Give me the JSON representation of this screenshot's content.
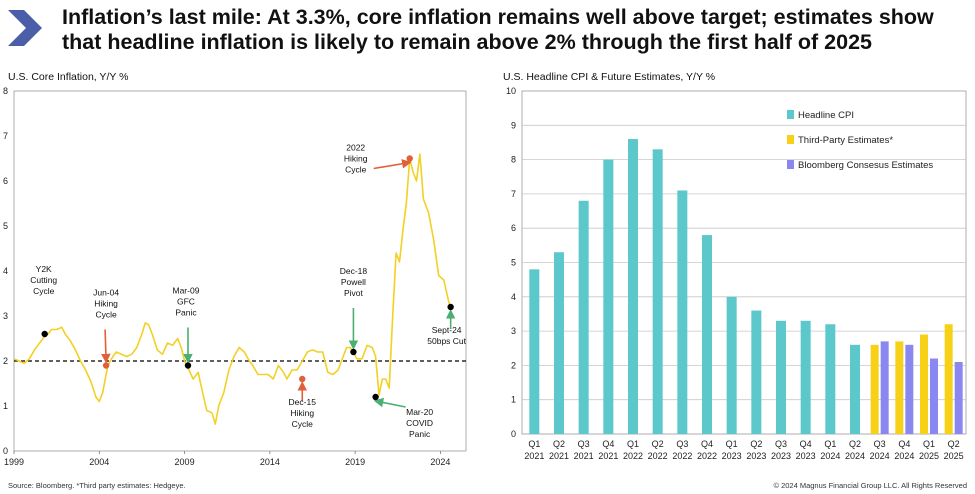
{
  "header": {
    "title_line1": "Inflation’s last mile: At 3.3%, core inflation remains well above target; estimates show",
    "title_line2": "that headline inflation is likely to remain above 2% through the first half of 2025"
  },
  "colors": {
    "chevron": "#4a5fa8",
    "core_line": "#f2d024",
    "headline_bar": "#5cc8cc",
    "third_party_bar": "#f7d117",
    "bloomberg_bar": "#8a88f0",
    "arrow_red": "#e0603a",
    "arrow_green": "#4caf72"
  },
  "footer": {
    "source": "Source: Bloomberg. *Third party estimates: Hedgeye.",
    "copyright": "© 2024 Magnus Financial Group LLC. All Rights Reserved"
  },
  "chart_data": [
    {
      "type": "line",
      "title": "U.S. Core Inflation, Y/Y %",
      "x_range": [
        1999,
        2025.5
      ],
      "ylim": [
        0,
        8
      ],
      "y_ticks": [
        "0",
        "1",
        "2",
        "3",
        "4",
        "5",
        "6",
        "7",
        "8"
      ],
      "x_ticks": [
        {
          "year": 1999,
          "label": "1999"
        },
        {
          "year": 2004,
          "label": "2004"
        },
        {
          "year": 2009,
          "label": "2009"
        },
        {
          "year": 2014,
          "label": "2014"
        },
        {
          "year": 2019,
          "label": "2019"
        },
        {
          "year": 2024,
          "label": "2024"
        }
      ],
      "target": 2,
      "series": [
        {
          "name": "Core Inflation",
          "points": [
            [
              1999.0,
              2.05
            ],
            [
              1999.3,
              2.0
            ],
            [
              1999.6,
              1.95
            ],
            [
              1999.9,
              2.05
            ],
            [
              2000.2,
              2.25
            ],
            [
              2000.5,
              2.4
            ],
            [
              2000.8,
              2.55
            ],
            [
              2001.0,
              2.6
            ],
            [
              2001.2,
              2.7
            ],
            [
              2001.5,
              2.7
            ],
            [
              2001.8,
              2.75
            ],
            [
              2002.0,
              2.6
            ],
            [
              2002.3,
              2.45
            ],
            [
              2002.6,
              2.25
            ],
            [
              2002.9,
              2.0
            ],
            [
              2003.2,
              1.8
            ],
            [
              2003.5,
              1.55
            ],
            [
              2003.8,
              1.2
            ],
            [
              2004.0,
              1.1
            ],
            [
              2004.2,
              1.3
            ],
            [
              2004.5,
              1.9
            ],
            [
              2004.8,
              2.1
            ],
            [
              2005.0,
              2.2
            ],
            [
              2005.3,
              2.15
            ],
            [
              2005.6,
              2.1
            ],
            [
              2005.9,
              2.15
            ],
            [
              2006.2,
              2.3
            ],
            [
              2006.5,
              2.6
            ],
            [
              2006.7,
              2.85
            ],
            [
              2006.9,
              2.8
            ],
            [
              2007.1,
              2.6
            ],
            [
              2007.4,
              2.25
            ],
            [
              2007.7,
              2.15
            ],
            [
              2008.0,
              2.4
            ],
            [
              2008.3,
              2.35
            ],
            [
              2008.6,
              2.5
            ],
            [
              2008.8,
              2.3
            ],
            [
              2009.0,
              2.0
            ],
            [
              2009.2,
              1.85
            ],
            [
              2009.5,
              1.6
            ],
            [
              2009.8,
              1.75
            ],
            [
              2010.0,
              1.4
            ],
            [
              2010.3,
              0.9
            ],
            [
              2010.6,
              0.85
            ],
            [
              2010.8,
              0.6
            ],
            [
              2011.0,
              1.0
            ],
            [
              2011.3,
              1.3
            ],
            [
              2011.6,
              1.8
            ],
            [
              2011.9,
              2.1
            ],
            [
              2012.2,
              2.3
            ],
            [
              2012.5,
              2.2
            ],
            [
              2012.8,
              2.0
            ],
            [
              2013.0,
              1.9
            ],
            [
              2013.3,
              1.7
            ],
            [
              2013.6,
              1.7
            ],
            [
              2013.9,
              1.7
            ],
            [
              2014.2,
              1.6
            ],
            [
              2014.5,
              1.9
            ],
            [
              2014.8,
              1.75
            ],
            [
              2015.0,
              1.6
            ],
            [
              2015.3,
              1.8
            ],
            [
              2015.6,
              1.8
            ],
            [
              2015.9,
              2.0
            ],
            [
              2016.2,
              2.2
            ],
            [
              2016.5,
              2.25
            ],
            [
              2016.8,
              2.2
            ],
            [
              2017.1,
              2.2
            ],
            [
              2017.4,
              1.75
            ],
            [
              2017.7,
              1.7
            ],
            [
              2018.0,
              1.8
            ],
            [
              2018.3,
              2.1
            ],
            [
              2018.5,
              2.3
            ],
            [
              2018.7,
              2.3
            ],
            [
              2018.9,
              2.2
            ],
            [
              2019.1,
              2.05
            ],
            [
              2019.4,
              2.05
            ],
            [
              2019.7,
              2.35
            ],
            [
              2020.0,
              2.3
            ],
            [
              2020.2,
              2.1
            ],
            [
              2020.4,
              1.25
            ],
            [
              2020.6,
              1.6
            ],
            [
              2020.8,
              1.6
            ],
            [
              2021.0,
              1.4
            ],
            [
              2021.2,
              3.0
            ],
            [
              2021.4,
              4.4
            ],
            [
              2021.6,
              4.2
            ],
            [
              2021.8,
              4.9
            ],
            [
              2022.0,
              5.5
            ],
            [
              2022.2,
              6.5
            ],
            [
              2022.4,
              6.2
            ],
            [
              2022.6,
              6.0
            ],
            [
              2022.8,
              6.6
            ],
            [
              2023.0,
              5.6
            ],
            [
              2023.3,
              5.3
            ],
            [
              2023.6,
              4.7
            ],
            [
              2023.9,
              3.9
            ],
            [
              2024.2,
              3.8
            ],
            [
              2024.5,
              3.3
            ],
            [
              2024.6,
              3.2
            ]
          ]
        }
      ],
      "annotations": [
        {
          "label_lines": [
            "Y2K",
            "Cutting",
            "Cycle"
          ],
          "x": 2000.8,
          "y": 2.6,
          "arrow": false
        },
        {
          "label_lines": [
            "Jun-04",
            "Hiking",
            "Cycle"
          ],
          "x": 2004.4,
          "y": 1.9,
          "arrow": "red"
        },
        {
          "label_lines": [
            "Mar-09",
            "GFC",
            "Panic"
          ],
          "x": 2009.2,
          "y": 1.9,
          "arrow": "green"
        },
        {
          "label_lines": [
            "Dec-15",
            "Hiking",
            "Cycle"
          ],
          "x": 2015.9,
          "y": 1.6,
          "arrow": "red"
        },
        {
          "label_lines": [
            "Dec-18",
            "Powell",
            "Pivot"
          ],
          "x": 2018.9,
          "y": 2.2,
          "arrow": "green"
        },
        {
          "label_lines": [
            "Mar-20",
            "COVID",
            "Panic"
          ],
          "x": 2020.2,
          "y": 1.2,
          "arrow": "green"
        },
        {
          "label_lines": [
            "2022",
            "Hiking",
            "Cycle"
          ],
          "x": 2022.2,
          "y": 6.5,
          "arrow": "red"
        },
        {
          "label_lines": [
            "Sept-24",
            "50bps Cut"
          ],
          "x": 2024.6,
          "y": 3.2,
          "arrow": "green"
        }
      ]
    },
    {
      "type": "bar",
      "title": "U.S. Headline CPI & Future Estimates, Y/Y %",
      "ylim": [
        0,
        10
      ],
      "y_ticks": [
        "0",
        "1",
        "2",
        "3",
        "4",
        "5",
        "6",
        "7",
        "8",
        "9",
        "10"
      ],
      "categories": [
        [
          "Q1",
          "2021"
        ],
        [
          "Q2",
          "2021"
        ],
        [
          "Q3",
          "2021"
        ],
        [
          "Q4",
          "2021"
        ],
        [
          "Q1",
          "2022"
        ],
        [
          "Q2",
          "2022"
        ],
        [
          "Q3",
          "2022"
        ],
        [
          "Q4",
          "2022"
        ],
        [
          "Q1",
          "2023"
        ],
        [
          "Q2",
          "2023"
        ],
        [
          "Q3",
          "2023"
        ],
        [
          "Q4",
          "2023"
        ],
        [
          "Q1",
          "2024"
        ],
        [
          "Q2",
          "2024"
        ],
        [
          "Q3",
          "2024"
        ],
        [
          "Q4",
          "2024"
        ],
        [
          "Q1",
          "2025"
        ],
        [
          "Q2",
          "2025"
        ]
      ],
      "series": [
        {
          "name": "Headline CPI",
          "values": [
            4.8,
            5.3,
            6.8,
            8.0,
            8.6,
            8.3,
            7.1,
            5.8,
            4.0,
            3.6,
            3.3,
            3.3,
            3.2,
            2.6,
            null,
            null,
            null,
            null
          ]
        },
        {
          "name": "Third-Party Estimates*",
          "values": [
            null,
            null,
            null,
            null,
            null,
            null,
            null,
            null,
            null,
            null,
            null,
            null,
            null,
            null,
            2.6,
            2.7,
            2.9,
            3.2
          ]
        },
        {
          "name": "Bloomberg Consesus Estimates",
          "values": [
            null,
            null,
            null,
            null,
            null,
            null,
            null,
            null,
            null,
            null,
            null,
            null,
            null,
            null,
            2.7,
            2.6,
            2.2,
            2.1
          ]
        }
      ],
      "legend_position": "top-right"
    }
  ]
}
